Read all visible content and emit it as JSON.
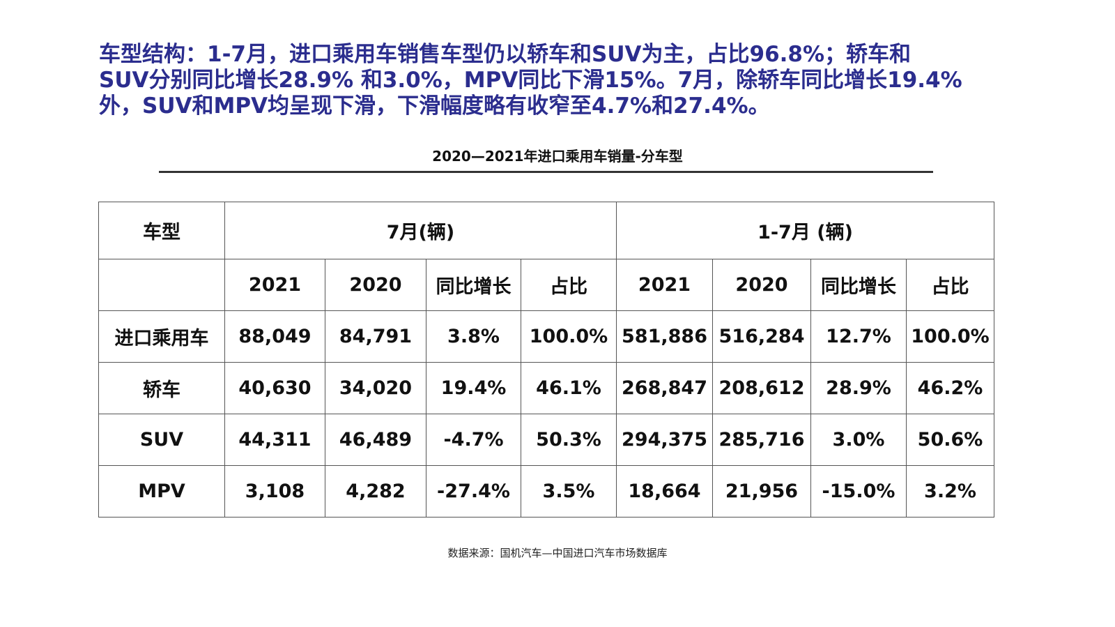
{
  "headline_lines": [
    "车型结构：1-7月，进口乘用车销售车型仍以轿车和SUV为主，占比96.8%；轿车和",
    "SUV分别同比增长28.9% 和3.0%，MPV同比下滑15%。7月，除轿车同比增长19.4%",
    "外，SUV和MPV均呈现下滑，下滑幅度略有收窄至4.7%和27.4%。"
  ],
  "headline_color": "#2b2d8e",
  "table_title": "2020—2021年进口乘用车销量-分车型",
  "table": {
    "type_header": "车型",
    "group_headers": [
      "7月(辆)",
      "1-7月 (辆)"
    ],
    "sub_headers": [
      "2021",
      "2020",
      "同比增长",
      "占比",
      "2021",
      "2020",
      "同比增长",
      "占比"
    ],
    "rows": [
      [
        "进口乘用车",
        "88,049",
        "84,791",
        "3.8%",
        "100.0%",
        "581,886",
        "516,284",
        "12.7%",
        "100.0%"
      ],
      [
        "轿车",
        "40,630",
        "34,020",
        "19.4%",
        "46.1%",
        "268,847",
        "208,612",
        "28.9%",
        "46.2%"
      ],
      [
        "SUV",
        "44,311",
        "46,489",
        "-4.7%",
        "50.3%",
        "294,375",
        "285,716",
        "3.0%",
        "50.6%"
      ],
      [
        "MPV",
        "3,108",
        "4,282",
        "-27.4%",
        "3.5%",
        "18,664",
        "21,956",
        "-15.0%",
        "3.2%"
      ]
    ]
  },
  "source": "数据来源：国机汽车—中国进口汽车市场数据库"
}
